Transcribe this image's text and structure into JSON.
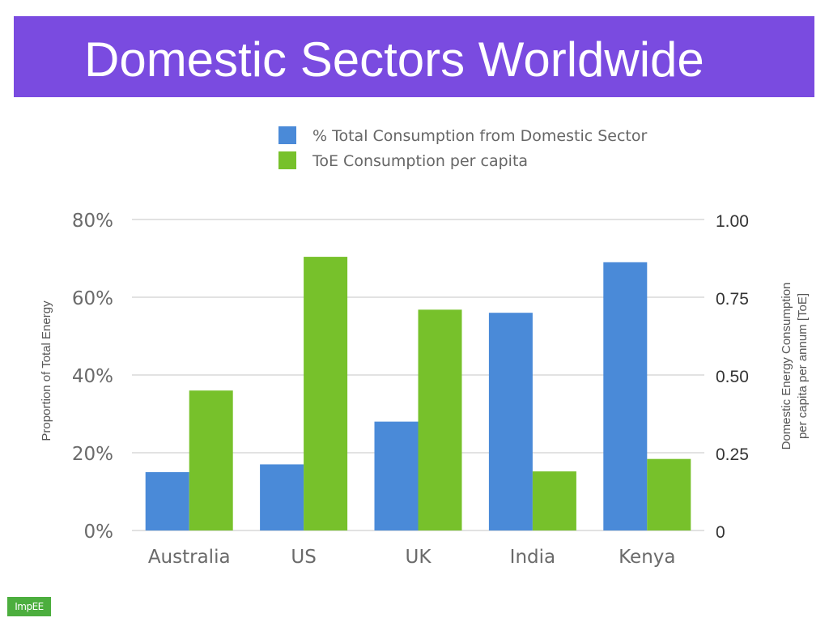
{
  "title": "Domestic Sectors Worldwide",
  "logo_text": "ImpEE",
  "colors": {
    "title_bar": "#7a4be0",
    "series_domestic": "#4a8ad8",
    "series_toe": "#77c12b",
    "grid": "#d9d9d9",
    "axis_text": "#555555"
  },
  "chart_data": {
    "type": "bar",
    "categories": [
      "Australia",
      "US",
      "UK",
      "India",
      "Kenya"
    ],
    "series": [
      {
        "name": "% Total Consumption from Domestic Sector",
        "axis": "left",
        "values": [
          15,
          17,
          28,
          56,
          69
        ]
      },
      {
        "name": "ToE Consumption per capita",
        "axis": "right",
        "values": [
          0.45,
          0.88,
          0.71,
          0.19,
          0.23
        ]
      }
    ],
    "ylabel": "Proportion of Total Energy",
    "ylabel_right": "Domestic Energy Consumption per capita per annum [ToE]",
    "ylim": [
      0,
      80
    ],
    "ylim_right": [
      0,
      1.0
    ],
    "yticks": [
      "0%",
      "20%",
      "40%",
      "60%",
      "80%"
    ],
    "yticks_right": [
      "0",
      "0.25",
      "0.50",
      "0.75",
      "1.00"
    ],
    "grid": true,
    "legend_position": "top-center"
  }
}
